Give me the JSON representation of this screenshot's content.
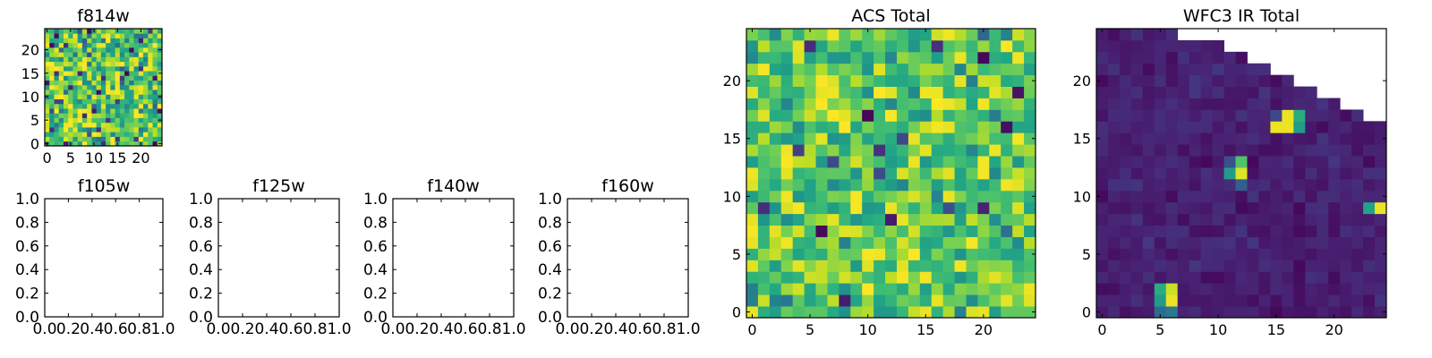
{
  "figure": {
    "colormap": "viridis",
    "colors": {
      "background": "#ffffff",
      "axes": "#000000",
      "viridis_low": "#440154",
      "viridis_mid": "#21918c",
      "viridis_high": "#fde725"
    }
  },
  "chart_data": [
    {
      "id": "f814w",
      "type": "heatmap",
      "title": "f814w",
      "xlabel": "",
      "ylabel": "",
      "xlim": [
        -0.5,
        24.5
      ],
      "ylim": [
        -0.5,
        24.5
      ],
      "xticks": [
        0,
        5,
        10,
        15,
        20
      ],
      "yticks": [
        0,
        5,
        10,
        15,
        20
      ],
      "grid_size": [
        25,
        25
      ],
      "value_range": [
        0,
        1
      ],
      "values_note": "25x25 per-pixel image; mostly high values (green-yellow) with scattered low pixels",
      "seed": 11,
      "mean": 0.7,
      "spread": 0.22,
      "dark_fraction": 0.05
    },
    {
      "id": "f105w",
      "type": "table",
      "title": "f105w",
      "xlim": [
        0,
        1
      ],
      "ylim": [
        0,
        1
      ],
      "xticks": [
        "0.0",
        "0.2",
        "0.4",
        "0.6",
        "0.8",
        "1.0"
      ],
      "yticks": [
        "0.0",
        "0.2",
        "0.4",
        "0.6",
        "0.8",
        "1.0"
      ],
      "empty": true
    },
    {
      "id": "f125w",
      "type": "table",
      "title": "f125w",
      "xlim": [
        0,
        1
      ],
      "ylim": [
        0,
        1
      ],
      "xticks": [
        "0.0",
        "0.2",
        "0.4",
        "0.6",
        "0.8",
        "1.0"
      ],
      "yticks": [
        "0.0",
        "0.2",
        "0.4",
        "0.6",
        "0.8",
        "1.0"
      ],
      "empty": true
    },
    {
      "id": "f140w",
      "type": "table",
      "title": "f140w",
      "xlim": [
        0,
        1
      ],
      "ylim": [
        0,
        1
      ],
      "xticks": [
        "0.0",
        "0.2",
        "0.4",
        "0.6",
        "0.8",
        "1.0"
      ],
      "yticks": [
        "0.0",
        "0.2",
        "0.4",
        "0.6",
        "0.8",
        "1.0"
      ],
      "empty": true
    },
    {
      "id": "f160w",
      "type": "table",
      "title": "f160w",
      "xlim": [
        0,
        1
      ],
      "ylim": [
        0,
        1
      ],
      "xticks": [
        "0.0",
        "0.2",
        "0.4",
        "0.6",
        "0.8",
        "1.0"
      ],
      "yticks": [
        "0.0",
        "0.2",
        "0.4",
        "0.6",
        "0.8",
        "1.0"
      ],
      "empty": true
    },
    {
      "id": "acs_total",
      "type": "heatmap",
      "title": "ACS Total",
      "xlabel": "",
      "ylabel": "",
      "xlim": [
        -0.5,
        24.5
      ],
      "ylim": [
        -0.5,
        24.5
      ],
      "xticks": [
        0,
        5,
        10,
        15,
        20
      ],
      "yticks": [
        0,
        5,
        10,
        15,
        20
      ],
      "grid_size": [
        25,
        25
      ],
      "value_range": [
        0,
        1
      ],
      "values_note": "25x25 per-pixel image; mostly green-yellow with a few dark purple pixels",
      "seed": 37,
      "mean": 0.72,
      "spread": 0.17,
      "dark_fraction": 0.035
    },
    {
      "id": "wfc3_ir_total",
      "type": "heatmap",
      "title": "WFC3 IR Total",
      "xlabel": "",
      "ylabel": "",
      "xlim": [
        -0.5,
        24.5
      ],
      "ylim": [
        -0.5,
        24.5
      ],
      "xticks": [
        0,
        5,
        10,
        15,
        20
      ],
      "yticks": [
        0,
        5,
        10,
        15,
        20
      ],
      "grid_size": [
        25,
        25
      ],
      "value_range": [
        0,
        1
      ],
      "values_note": "25x25 image; mostly dark purple background (~0.05-0.15); blank (no data) top-right stair-step region",
      "seed": 5,
      "mean": 0.09,
      "spread": 0.04,
      "valid_top_row_by_column": [
        24,
        24,
        24,
        24,
        24,
        24,
        24,
        23,
        23,
        23,
        23,
        22,
        22,
        21,
        21,
        20,
        20,
        19,
        19,
        18,
        18,
        17,
        17,
        16,
        16
      ],
      "bright_pixels": [
        {
          "x": 16,
          "y": 17,
          "v": 0.97
        },
        {
          "x": 16,
          "y": 16,
          "v": 0.97
        },
        {
          "x": 15,
          "y": 16,
          "v": 0.97
        },
        {
          "x": 17,
          "y": 17,
          "v": 0.62
        },
        {
          "x": 17,
          "y": 16,
          "v": 0.55
        },
        {
          "x": 15,
          "y": 17,
          "v": 0.22
        },
        {
          "x": 12,
          "y": 13,
          "v": 0.72
        },
        {
          "x": 12,
          "y": 12,
          "v": 0.95
        },
        {
          "x": 11,
          "y": 12,
          "v": 0.55
        },
        {
          "x": 11,
          "y": 13,
          "v": 0.25
        },
        {
          "x": 12,
          "y": 11,
          "v": 0.3
        },
        {
          "x": 24,
          "y": 9,
          "v": 0.97
        },
        {
          "x": 23,
          "y": 9,
          "v": 0.58
        },
        {
          "x": 5,
          "y": 1,
          "v": 0.55
        },
        {
          "x": 5,
          "y": 2,
          "v": 0.62
        },
        {
          "x": 6,
          "y": 1,
          "v": 0.97
        },
        {
          "x": 6,
          "y": 2,
          "v": 0.92
        },
        {
          "x": 6,
          "y": 0,
          "v": 0.4
        },
        {
          "x": 5,
          "y": 0,
          "v": 0.35
        }
      ]
    }
  ]
}
